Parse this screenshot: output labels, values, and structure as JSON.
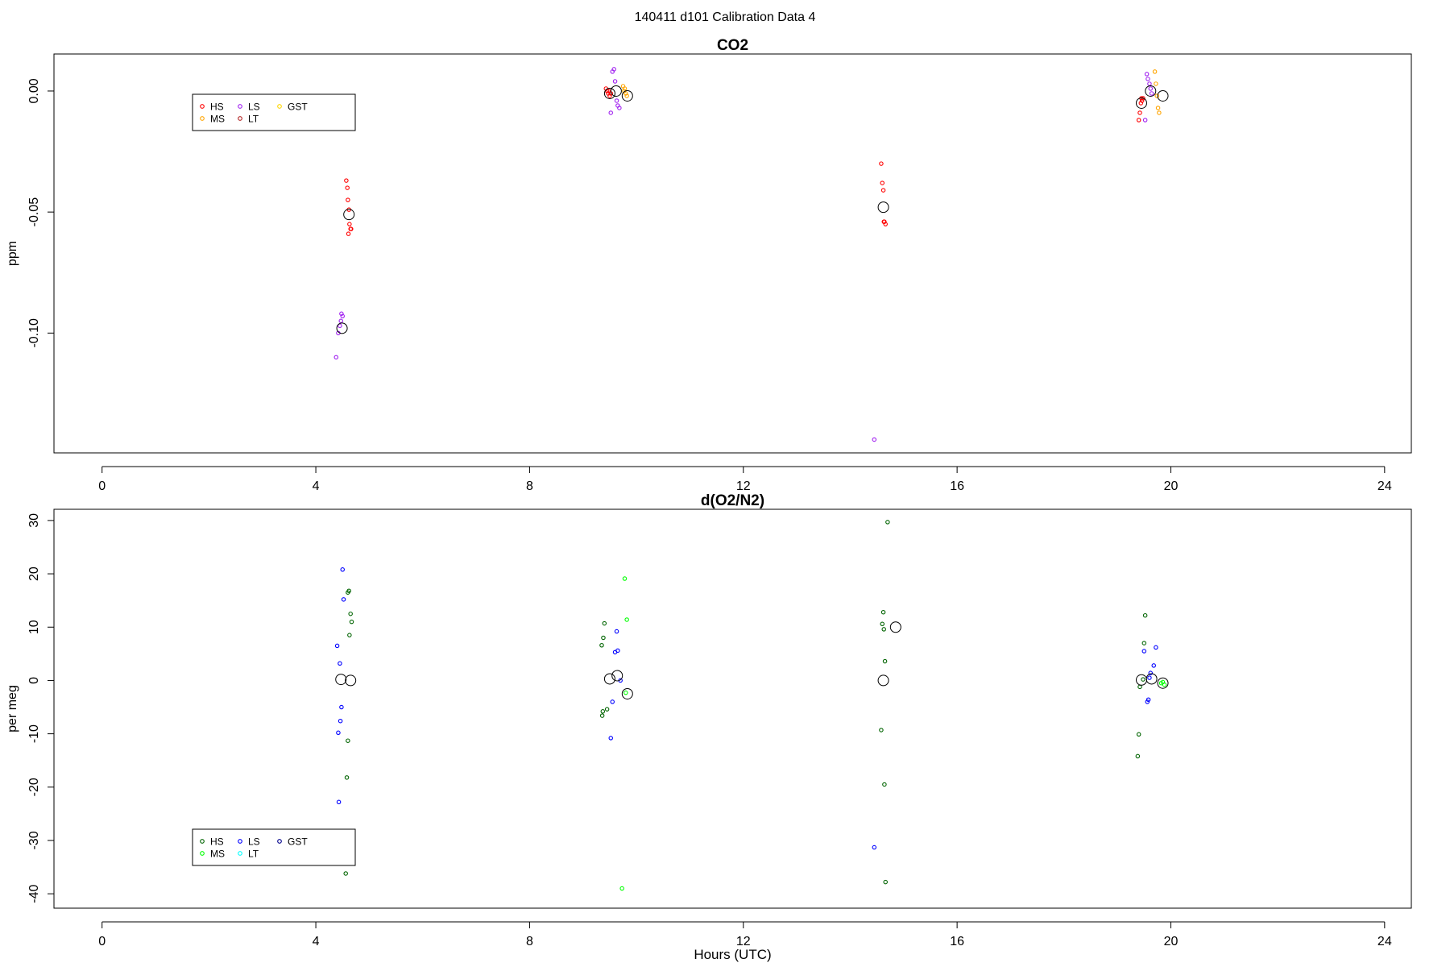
{
  "page_title": "140411   d101   Calibration Data 4",
  "chart_data": [
    {
      "type": "scatter",
      "title": "CO2",
      "xlabel": "",
      "ylabel": "ppm",
      "xlim": [
        -0.9,
        24.5
      ],
      "ylim": [
        -0.1495,
        0.0153
      ],
      "xticks": [
        0,
        4,
        8,
        12,
        16,
        20,
        24
      ],
      "xtick_labels": [
        "0",
        "4",
        "8",
        "12",
        "16",
        "20",
        "24"
      ],
      "yticks": [
        0.0,
        -0.05,
        -0.1
      ],
      "ytick_labels": [
        "0.00",
        "-0.05",
        "-0.10"
      ],
      "grid": false,
      "legend": {
        "placement": "top-left",
        "entries": [
          {
            "name": "HS",
            "color": "#ff0000"
          },
          {
            "name": "MS",
            "color": "#ffa500"
          },
          {
            "name": "LS",
            "color": "#a020f0"
          },
          {
            "name": "LT",
            "color": "#b22222"
          },
          {
            "name": "GST",
            "color": "#ffd700"
          }
        ]
      },
      "series": [
        {
          "name": "HS",
          "color": "#ff0000",
          "points": [
            [
              4.57,
              -0.037
            ],
            [
              4.59,
              -0.04
            ],
            [
              4.6,
              -0.045
            ],
            [
              4.62,
              -0.049
            ],
            [
              4.63,
              -0.055
            ],
            [
              4.65,
              -0.057
            ],
            [
              4.66,
              -0.057
            ],
            [
              4.61,
              -0.059
            ],
            [
              9.43,
              0.001
            ],
            [
              9.45,
              0.0
            ],
            [
              9.47,
              -0.001
            ],
            [
              9.5,
              -0.002
            ],
            [
              9.48,
              0.0
            ],
            [
              9.52,
              -0.001
            ],
            [
              14.58,
              -0.03
            ],
            [
              14.6,
              -0.038
            ],
            [
              14.62,
              -0.041
            ],
            [
              14.63,
              -0.054
            ],
            [
              14.66,
              -0.055
            ],
            [
              14.64,
              -0.054
            ],
            [
              19.4,
              -0.012
            ],
            [
              19.42,
              -0.009
            ],
            [
              19.44,
              -0.005
            ],
            [
              19.46,
              -0.004
            ],
            [
              19.48,
              -0.003
            ],
            [
              19.45,
              -0.003
            ]
          ]
        },
        {
          "name": "MS",
          "color": "#ffa500",
          "points": [
            [
              9.75,
              0.002
            ],
            [
              9.78,
              0.001
            ],
            [
              9.8,
              -0.001
            ],
            [
              9.82,
              -0.002
            ],
            [
              9.77,
              0.0
            ],
            [
              19.7,
              0.008
            ],
            [
              19.72,
              0.003
            ],
            [
              19.74,
              -0.002
            ],
            [
              19.76,
              -0.007
            ],
            [
              19.78,
              -0.009
            ]
          ]
        },
        {
          "name": "LS",
          "color": "#a020f0",
          "points": [
            [
              4.38,
              -0.11
            ],
            [
              4.42,
              -0.1
            ],
            [
              4.45,
              -0.097
            ],
            [
              4.47,
              -0.095
            ],
            [
              4.5,
              -0.093
            ],
            [
              4.48,
              -0.092
            ],
            [
              9.55,
              0.008
            ],
            [
              9.58,
              0.009
            ],
            [
              9.6,
              0.004
            ],
            [
              9.63,
              -0.004
            ],
            [
              9.65,
              -0.006
            ],
            [
              9.68,
              -0.007
            ],
            [
              9.52,
              -0.009
            ],
            [
              14.45,
              -0.144
            ],
            [
              19.55,
              0.007
            ],
            [
              19.57,
              0.005
            ],
            [
              19.6,
              0.003
            ],
            [
              19.62,
              0.001
            ],
            [
              19.64,
              -0.001
            ],
            [
              19.52,
              -0.012
            ]
          ]
        }
      ],
      "means": [
        [
          4.49,
          -0.098
        ],
        [
          4.62,
          -0.051
        ],
        [
          9.5,
          -0.001
        ],
        [
          9.62,
          0.0
        ],
        [
          9.83,
          -0.002
        ],
        [
          14.62,
          -0.048
        ],
        [
          19.45,
          -0.005
        ],
        [
          19.62,
          0.0
        ],
        [
          19.85,
          -0.002
        ]
      ]
    },
    {
      "type": "scatter",
      "title": "d(O2/N2)",
      "xlabel": "Hours (UTC)",
      "ylabel": "per meg",
      "xlim": [
        -0.9,
        24.5
      ],
      "ylim": [
        -42.7,
        32.1
      ],
      "xticks": [
        0,
        4,
        8,
        12,
        16,
        20,
        24
      ],
      "xtick_labels": [
        "0",
        "4",
        "8",
        "12",
        "16",
        "20",
        "24"
      ],
      "yticks": [
        30,
        20,
        10,
        0,
        -10,
        -20,
        -30,
        -40
      ],
      "ytick_labels": [
        "30",
        "20",
        "10",
        "0",
        "-10",
        "-20",
        "-30",
        "-40"
      ],
      "grid": false,
      "legend": {
        "placement": "bottom-left",
        "entries": [
          {
            "name": "HS",
            "color": "#006400"
          },
          {
            "name": "MS",
            "color": "#00ff00"
          },
          {
            "name": "LS",
            "color": "#0000ff"
          },
          {
            "name": "LT",
            "color": "#00ffff"
          },
          {
            "name": "GST",
            "color": "#00008b"
          }
        ]
      },
      "series": [
        {
          "name": "HS",
          "color": "#006400",
          "points": [
            [
              4.6,
              16.5
            ],
            [
              4.62,
              16.8
            ],
            [
              4.65,
              12.5
            ],
            [
              4.67,
              11.0
            ],
            [
              4.63,
              8.5
            ],
            [
              4.6,
              -11.3
            ],
            [
              4.58,
              -18.2
            ],
            [
              4.56,
              -36.2
            ],
            [
              9.4,
              10.7
            ],
            [
              9.38,
              8.0
            ],
            [
              9.35,
              6.6
            ],
            [
              9.37,
              -5.8
            ],
            [
              9.36,
              -6.6
            ],
            [
              9.45,
              -5.4
            ],
            [
              14.7,
              29.7
            ],
            [
              14.62,
              12.8
            ],
            [
              14.6,
              10.6
            ],
            [
              14.63,
              9.6
            ],
            [
              14.65,
              3.6
            ],
            [
              14.58,
              -9.3
            ],
            [
              14.64,
              -19.5
            ],
            [
              14.66,
              -37.8
            ],
            [
              19.52,
              12.2
            ],
            [
              19.5,
              7.0
            ],
            [
              19.48,
              0.2
            ],
            [
              19.42,
              -1.2
            ],
            [
              19.4,
              -10.1
            ],
            [
              19.38,
              -14.2
            ]
          ]
        },
        {
          "name": "MS",
          "color": "#00ff00",
          "points": [
            [
              9.78,
              19.1
            ],
            [
              9.82,
              11.4
            ],
            [
              9.8,
              -2.3
            ],
            [
              9.73,
              -39.0
            ],
            [
              19.85,
              -0.3
            ],
            [
              19.88,
              -0.8
            ],
            [
              19.82,
              -0.5
            ]
          ]
        },
        {
          "name": "LS",
          "color": "#0000ff",
          "points": [
            [
              4.5,
              20.8
            ],
            [
              4.52,
              15.2
            ],
            [
              4.4,
              6.5
            ],
            [
              4.45,
              3.2
            ],
            [
              4.48,
              -5.0
            ],
            [
              4.46,
              -7.6
            ],
            [
              4.42,
              -9.8
            ],
            [
              4.43,
              -22.8
            ],
            [
              9.63,
              9.2
            ],
            [
              9.6,
              5.3
            ],
            [
              9.65,
              5.6
            ],
            [
              9.7,
              0.0
            ],
            [
              9.55,
              -4.0
            ],
            [
              9.52,
              -10.8
            ],
            [
              14.45,
              -31.3
            ],
            [
              19.5,
              5.5
            ],
            [
              19.72,
              6.2
            ],
            [
              19.68,
              2.8
            ],
            [
              19.62,
              1.4
            ],
            [
              19.6,
              0.5
            ],
            [
              19.58,
              -3.6
            ],
            [
              19.56,
              -4.0
            ]
          ]
        }
      ],
      "means": [
        [
          4.47,
          0.2
        ],
        [
          4.65,
          0.0
        ],
        [
          9.5,
          0.3
        ],
        [
          9.64,
          0.9
        ],
        [
          9.83,
          -2.5
        ],
        [
          14.62,
          0.0
        ],
        [
          14.85,
          10.0
        ],
        [
          19.45,
          0.1
        ],
        [
          19.64,
          0.3
        ],
        [
          19.85,
          -0.5
        ]
      ]
    }
  ]
}
